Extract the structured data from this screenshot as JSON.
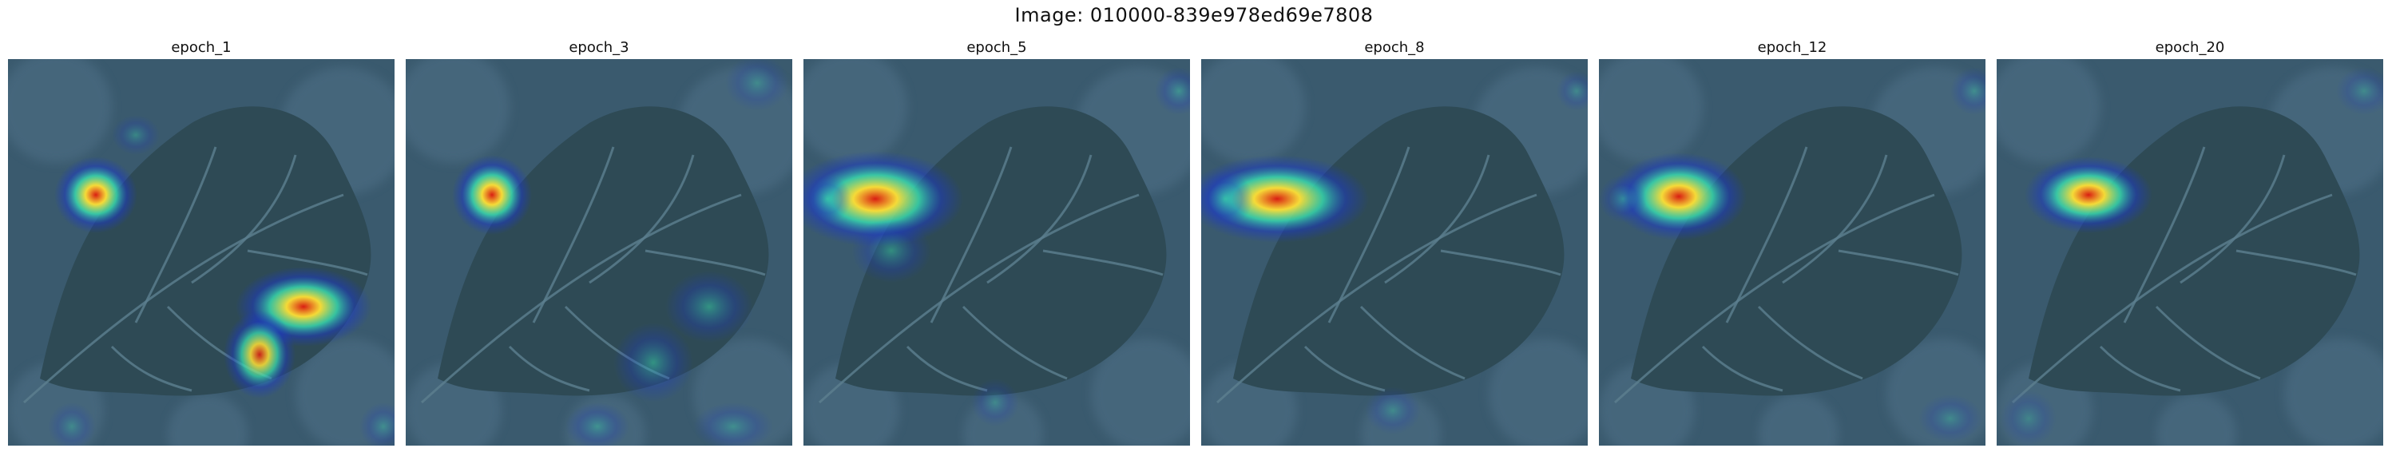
{
  "figure": {
    "title": "Image: 010000-839e978ed69e7808"
  },
  "panels": [
    {
      "title": "epoch_1",
      "heatmap_icon": "gradcam-heatmap-overlay"
    },
    {
      "title": "epoch_3",
      "heatmap_icon": "gradcam-heatmap-overlay"
    },
    {
      "title": "epoch_5",
      "heatmap_icon": "gradcam-heatmap-overlay"
    },
    {
      "title": "epoch_8",
      "heatmap_icon": "gradcam-heatmap-overlay"
    },
    {
      "title": "epoch_12",
      "heatmap_icon": "gradcam-heatmap-overlay"
    },
    {
      "title": "epoch_20",
      "heatmap_icon": "gradcam-heatmap-overlay"
    }
  ],
  "colors": {
    "background": "#3a5a6e",
    "leaf": "#2e4a55",
    "vein": "#5d7f90",
    "heat_low": "#1b39c9",
    "heat_mid": "#38e0b2",
    "heat_high": "#ffe135",
    "heat_peak": "#d91e12"
  }
}
